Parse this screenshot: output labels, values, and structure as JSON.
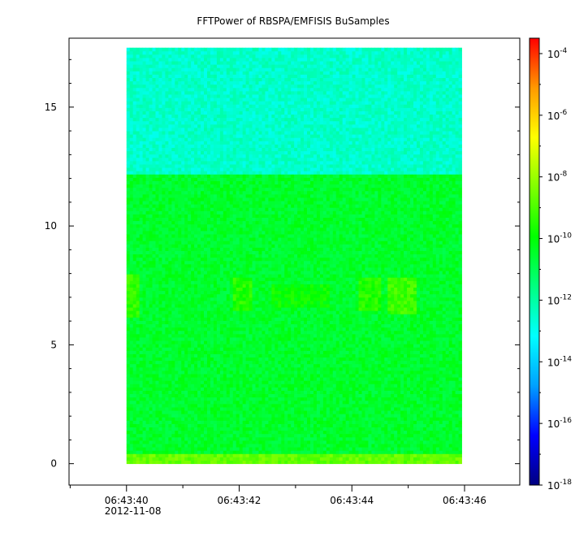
{
  "chart_data": {
    "type": "heatmap",
    "title": "FFTPower of RBSPA/EMFISIS  BuSamples",
    "xlabel": "",
    "ylabel": "",
    "x_ticks": [
      {
        "label": "06:43:40",
        "sublabel": "2012-11-08",
        "value": 40
      },
      {
        "label": "06:43:42",
        "value": 42
      },
      {
        "label": "06:43:44",
        "value": 44
      },
      {
        "label": "06:43:46",
        "value": 46
      }
    ],
    "x_range_seconds": [
      38.98,
      46.98
    ],
    "y_ticks": [
      0,
      5,
      10,
      15
    ],
    "ylim": [
      -0.9,
      17.9
    ],
    "data_extent": {
      "x": [
        40.0,
        45.95
      ],
      "y": [
        0.0,
        17.5
      ]
    },
    "bands": [
      {
        "y": [
          12.2,
          17.5
        ],
        "log_power": -12.5
      },
      {
        "y": [
          0.45,
          12.2
        ],
        "log_power": -10.5
      },
      {
        "y": [
          0.0,
          0.45
        ],
        "log_power": -8.7
      }
    ],
    "enhancements": [
      {
        "x": [
          40.0,
          40.25
        ],
        "y": [
          6.2,
          8.0
        ],
        "log_power": -9.3
      },
      {
        "x": [
          41.9,
          42.25
        ],
        "y": [
          6.5,
          7.9
        ],
        "log_power": -9.5
      },
      {
        "x": [
          42.6,
          43.6
        ],
        "y": [
          6.6,
          7.6
        ],
        "log_power": -9.9
      },
      {
        "x": [
          44.1,
          44.5
        ],
        "y": [
          6.5,
          7.8
        ],
        "log_power": -9.5
      },
      {
        "x": [
          44.65,
          45.15
        ],
        "y": [
          6.3,
          7.9
        ],
        "log_power": -9.2
      }
    ],
    "colorbar": {
      "scale": "log",
      "range_exponent": [
        -18,
        -3.5
      ],
      "ticks": [
        {
          "base": "10",
          "exp": "-4"
        },
        {
          "base": "10",
          "exp": "-6"
        },
        {
          "base": "10",
          "exp": "-8"
        },
        {
          "base": "10",
          "exp": "-10"
        },
        {
          "base": "10",
          "exp": "-12"
        },
        {
          "base": "10",
          "exp": "-14"
        },
        {
          "base": "10",
          "exp": "-16"
        },
        {
          "base": "10",
          "exp": "-18"
        }
      ],
      "colormap": [
        "#000080",
        "#0000ff",
        "#00a0ff",
        "#00ffff",
        "#00ff80",
        "#00ff00",
        "#80ff00",
        "#ffff00",
        "#ff9900",
        "#ff0000"
      ]
    }
  }
}
